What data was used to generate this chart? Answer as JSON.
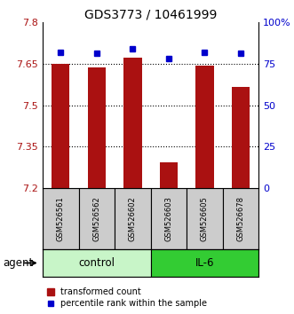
{
  "title": "GDS3773 / 10461999",
  "samples": [
    "GSM526561",
    "GSM526562",
    "GSM526602",
    "GSM526603",
    "GSM526605",
    "GSM526678"
  ],
  "bar_values": [
    7.648,
    7.635,
    7.67,
    7.295,
    7.643,
    7.565
  ],
  "percentile_values": [
    82,
    81,
    84,
    78,
    82,
    81
  ],
  "bar_color": "#aa1111",
  "percentile_color": "#0000cc",
  "ymin": 7.2,
  "ymax": 7.8,
  "yticks": [
    7.2,
    7.35,
    7.5,
    7.65,
    7.8
  ],
  "ytick_labels": [
    "7.2",
    "7.35",
    "7.5",
    "7.65",
    "7.8"
  ],
  "right_yticks": [
    0,
    25,
    50,
    75,
    100
  ],
  "right_ytick_labels": [
    "0",
    "25",
    "50",
    "75",
    "100%"
  ],
  "groups": [
    {
      "label": "control",
      "indices": [
        0,
        1,
        2
      ],
      "color": "#c8f5c8"
    },
    {
      "label": "IL-6",
      "indices": [
        3,
        4,
        5
      ],
      "color": "#33cc33"
    }
  ],
  "agent_label": "agent",
  "legend_bar_label": "transformed count",
  "legend_dot_label": "percentile rank within the sample",
  "sample_box_color": "#cccccc"
}
